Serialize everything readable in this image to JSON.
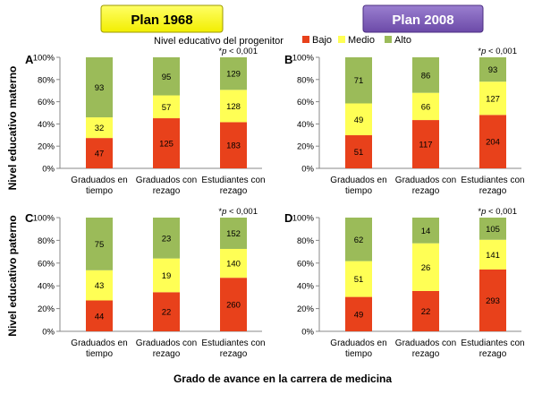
{
  "plans": {
    "left": "Plan 1968",
    "right": "Plan 2008"
  },
  "legend": {
    "title": "Nivel educativo del progenitor",
    "items": [
      {
        "label": "Bajo",
        "color": "#e8411b"
      },
      {
        "label": "Medio",
        "color": "#ffff55"
      },
      {
        "label": "Alto",
        "color": "#9bbb59"
      }
    ]
  },
  "row_labels": {
    "top": "Nivel educativo materno",
    "bottom": "Nivel educativo paterno"
  },
  "xlabel": "Grado de avance en la carrera de medicina",
  "chart_data": [
    {
      "type": "bar",
      "stacked": "percent",
      "panel": "A",
      "categories": [
        "Graduados en tiempo",
        "Graduados con rezago",
        "Estudiantes con rezago"
      ],
      "series": [
        {
          "name": "Bajo",
          "values": [
            47,
            125,
            183
          ]
        },
        {
          "name": "Medio",
          "values": [
            32,
            57,
            128
          ]
        },
        {
          "name": "Alto",
          "values": [
            93,
            95,
            129
          ]
        }
      ],
      "ylim": [
        0,
        100
      ],
      "yticks": [
        "0%",
        "20%",
        "40%",
        "60%",
        "80%",
        "100%"
      ],
      "annotation": "*p < 0,001",
      "grid": false
    },
    {
      "type": "bar",
      "stacked": "percent",
      "panel": "B",
      "categories": [
        "Graduados en tiempo",
        "Graduados con rezago",
        "Estudiantes con rezago"
      ],
      "series": [
        {
          "name": "Bajo",
          "values": [
            51,
            117,
            204
          ]
        },
        {
          "name": "Medio",
          "values": [
            49,
            66,
            127
          ]
        },
        {
          "name": "Alto",
          "values": [
            71,
            86,
            93
          ]
        }
      ],
      "ylim": [
        0,
        100
      ],
      "yticks": [
        "0%",
        "20%",
        "40%",
        "60%",
        "80%",
        "100%"
      ],
      "annotation": "*p < 0,001",
      "grid": false
    },
    {
      "type": "bar",
      "stacked": "percent",
      "panel": "C",
      "categories": [
        "Graduados en tiempo",
        "Graduados con rezago",
        "Estudiantes con rezago"
      ],
      "series": [
        {
          "name": "Bajo",
          "values": [
            44,
            22,
            260
          ]
        },
        {
          "name": "Medio",
          "values": [
            43,
            19,
            140
          ]
        },
        {
          "name": "Alto",
          "values": [
            75,
            23,
            152
          ]
        }
      ],
      "ylim": [
        0,
        100
      ],
      "yticks": [
        "0%",
        "20%",
        "40%",
        "60%",
        "80%",
        "100%"
      ],
      "annotation": "*p < 0,001",
      "grid": false
    },
    {
      "type": "bar",
      "stacked": "percent",
      "panel": "D",
      "categories": [
        "Graduados en tiempo",
        "Graduados con rezago",
        "Estudiantes con rezago"
      ],
      "series": [
        {
          "name": "Bajo",
          "values": [
            49,
            22,
            293
          ]
        },
        {
          "name": "Medio",
          "values": [
            51,
            26,
            141
          ]
        },
        {
          "name": "Alto",
          "values": [
            62,
            14,
            105
          ]
        }
      ],
      "ylim": [
        0,
        100
      ],
      "yticks": [
        "0%",
        "20%",
        "40%",
        "60%",
        "80%",
        "100%"
      ],
      "annotation": "*p < 0,001",
      "grid": false
    }
  ]
}
